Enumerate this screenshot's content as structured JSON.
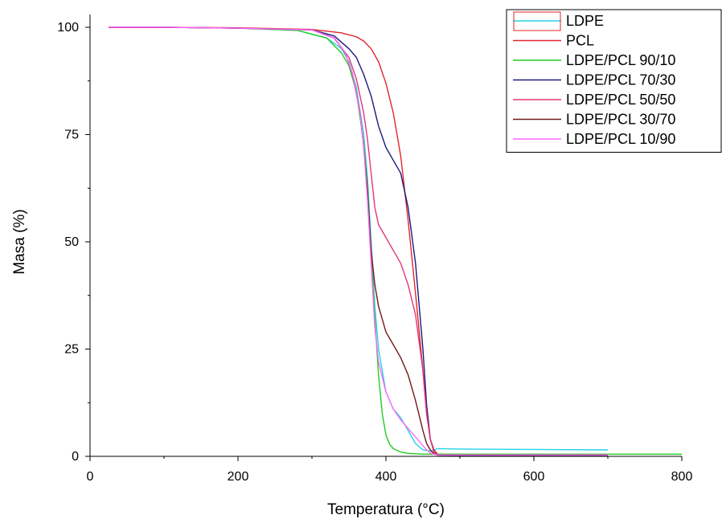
{
  "chart_data": {
    "type": "line",
    "title": "",
    "xlabel": "Temperatura (°C)",
    "ylabel": "Masa (%)",
    "xlim": [
      0,
      800
    ],
    "ylim": [
      0,
      100
    ],
    "xticks": [
      0,
      200,
      400,
      600,
      800
    ],
    "yticks": [
      0,
      25,
      50,
      75,
      100
    ],
    "grid": false,
    "legend_position": "top-right",
    "series": [
      {
        "name": "LDPE",
        "color": "#22d4e6",
        "x": [
          25,
          100,
          200,
          280,
          320,
          340,
          350,
          360,
          370,
          375,
          380,
          385,
          390,
          400,
          410,
          420,
          430,
          440,
          450,
          460,
          465,
          470,
          500,
          600,
          700
        ],
        "y": [
          100,
          100,
          99.8,
          99.3,
          97.5,
          95,
          92,
          86,
          75,
          65,
          50,
          35,
          25,
          15,
          11,
          9,
          6,
          3,
          1.5,
          1.2,
          1.5,
          1.8,
          1.7,
          1.6,
          1.5
        ]
      },
      {
        "name": "PCL",
        "color": "#e0262a",
        "x": [
          25,
          100,
          200,
          300,
          340,
          360,
          370,
          380,
          390,
          400,
          410,
          420,
          430,
          440,
          450,
          455,
          460,
          465,
          470,
          500,
          600,
          700
        ],
        "y": [
          100,
          100,
          99.9,
          99.5,
          98.7,
          97.8,
          96.8,
          95,
          92,
          87,
          80,
          70,
          55,
          38,
          20,
          10,
          4,
          1.5,
          0.5,
          0.4,
          0.4,
          0.4
        ]
      },
      {
        "name": "LDPE/PCL 90/10",
        "color": "#22cc22",
        "x": [
          25,
          100,
          200,
          280,
          320,
          340,
          350,
          360,
          370,
          375,
          380,
          385,
          390,
          395,
          400,
          405,
          410,
          420,
          430,
          450,
          500,
          600,
          700,
          800
        ],
        "y": [
          100,
          100,
          99.8,
          99.3,
          97.5,
          94,
          91,
          85,
          73,
          63,
          48,
          32,
          19,
          10,
          5,
          2.8,
          1.8,
          1,
          0.7,
          0.5,
          0.5,
          0.5,
          0.5,
          0.5
        ]
      },
      {
        "name": "LDPE/PCL 70/30",
        "color": "#1a1a80",
        "x": [
          25,
          100,
          200,
          300,
          330,
          350,
          360,
          370,
          380,
          390,
          400,
          410,
          420,
          430,
          440,
          445,
          450,
          455,
          460,
          465,
          470,
          500,
          600,
          700
        ],
        "y": [
          100,
          100,
          99.8,
          99.4,
          98,
          95,
          93,
          89,
          84,
          77,
          72,
          69,
          66,
          58,
          45,
          35,
          25,
          12,
          4,
          1,
          0.3,
          0.2,
          0.2,
          0.2
        ]
      },
      {
        "name": "LDPE/PCL 50/50",
        "color": "#e8337a",
        "x": [
          25,
          100,
          200,
          300,
          330,
          350,
          360,
          370,
          375,
          380,
          385,
          390,
          400,
          410,
          420,
          430,
          440,
          450,
          455,
          460,
          465,
          470,
          500,
          700
        ],
        "y": [
          100,
          100,
          99.8,
          99.4,
          97.5,
          93,
          88,
          80,
          74,
          66,
          58,
          54,
          51,
          48,
          45,
          40,
          33,
          20,
          10,
          4,
          1,
          0.3,
          0.3,
          0.3
        ]
      },
      {
        "name": "LDPE/PCL 30/70",
        "color": "#6e1a1a",
        "x": [
          25,
          100,
          200,
          300,
          330,
          345,
          355,
          365,
          370,
          375,
          380,
          385,
          390,
          400,
          410,
          420,
          430,
          440,
          450,
          455,
          460,
          465,
          470,
          500,
          600,
          700
        ],
        "y": [
          100,
          100,
          99.8,
          99.4,
          97.5,
          94,
          89,
          80,
          72,
          62,
          48,
          40,
          35,
          29,
          26,
          23,
          19,
          13,
          6,
          3,
          1.5,
          0.6,
          0.3,
          0.3,
          0.3,
          0.3
        ]
      },
      {
        "name": "LDPE/PCL 10/90",
        "color": "#ff66ff",
        "x": [
          25,
          100,
          200,
          300,
          330,
          345,
          355,
          365,
          370,
          375,
          380,
          385,
          390,
          400,
          410,
          420,
          430,
          440,
          450,
          455,
          460,
          465,
          470,
          500,
          700
        ],
        "y": [
          100,
          100,
          99.8,
          99.4,
          97.5,
          94,
          89,
          80,
          72,
          60,
          45,
          30,
          22,
          15,
          11,
          8.5,
          6.5,
          4.5,
          2.5,
          1.5,
          0.8,
          0.5,
          0.3,
          0.3,
          0.3
        ]
      }
    ]
  }
}
